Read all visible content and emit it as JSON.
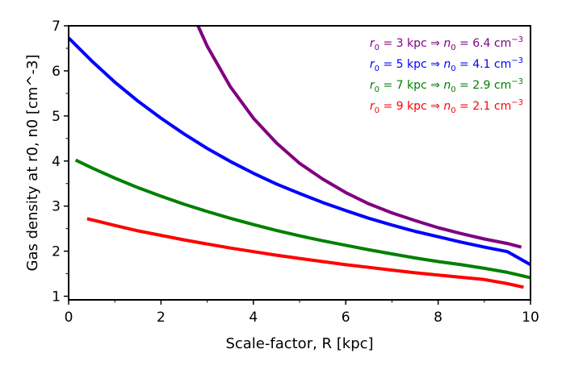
{
  "chart_data": {
    "type": "line",
    "xlabel": "Scale-factor, R [kpc]",
    "ylabel": "Gas density at r0, n0 [cm^-3]",
    "xlim": [
      0,
      10
    ],
    "ylim": [
      0.92,
      7
    ],
    "xticks": [
      0,
      2,
      4,
      6,
      8,
      10
    ],
    "yticks": [
      1,
      2,
      3,
      4,
      5,
      6,
      7
    ],
    "grid": false,
    "legend_position": "top-right",
    "series": [
      {
        "name": "r0 = 3 kpc ⇒ n0 = 6.4 cm^-3",
        "r0": "3",
        "n0": "6.4",
        "color": "#800080",
        "x": [
          2.8,
          3.0,
          3.5,
          4.0,
          4.5,
          5.0,
          5.5,
          6.0,
          6.5,
          7.0,
          7.5,
          8.0,
          8.5,
          9.0,
          9.5,
          9.8
        ],
        "y": [
          7.0,
          6.55,
          5.65,
          4.95,
          4.4,
          3.95,
          3.6,
          3.3,
          3.05,
          2.85,
          2.68,
          2.52,
          2.39,
          2.27,
          2.17,
          2.09
        ]
      },
      {
        "name": "r0 = 5 kpc ⇒ n0 = 4.1 cm^-3",
        "r0": "5",
        "n0": "4.1",
        "color": "#0000ff",
        "x": [
          0,
          0.5,
          1,
          1.5,
          2,
          2.5,
          3,
          3.5,
          4,
          4.5,
          5,
          5.5,
          6,
          6.5,
          7,
          7.5,
          8,
          8.5,
          9,
          9.5,
          10
        ],
        "y": [
          6.73,
          6.22,
          5.75,
          5.33,
          4.95,
          4.6,
          4.28,
          3.99,
          3.73,
          3.49,
          3.28,
          3.08,
          2.9,
          2.73,
          2.58,
          2.44,
          2.32,
          2.2,
          2.09,
          1.99,
          1.7
        ]
      },
      {
        "name": "r0 = 7 kpc ⇒ n0 = 2.9 cm^-3",
        "r0": "7",
        "n0": "2.9",
        "color": "#008000",
        "x": [
          0.15,
          0.5,
          1,
          1.5,
          2,
          2.5,
          3,
          3.5,
          4,
          4.5,
          5,
          5.5,
          6,
          6.5,
          7,
          7.5,
          8,
          8.5,
          9,
          9.5,
          10
        ],
        "y": [
          4.02,
          3.85,
          3.62,
          3.41,
          3.22,
          3.04,
          2.88,
          2.73,
          2.59,
          2.46,
          2.34,
          2.23,
          2.13,
          2.03,
          1.94,
          1.85,
          1.77,
          1.7,
          1.62,
          1.53,
          1.41
        ]
      },
      {
        "name": "r0 = 9 kpc ⇒ n0 = 2.1 cm^-3",
        "r0": "9",
        "n0": "2.1",
        "color": "#ff0000",
        "x": [
          0.4,
          1,
          1.5,
          2,
          2.5,
          3,
          3.5,
          4,
          4.5,
          5,
          5.5,
          6,
          6.5,
          7,
          7.5,
          8,
          8.5,
          9,
          9.5,
          9.85
        ],
        "y": [
          2.72,
          2.57,
          2.45,
          2.35,
          2.25,
          2.16,
          2.07,
          1.99,
          1.91,
          1.84,
          1.77,
          1.7,
          1.64,
          1.58,
          1.52,
          1.47,
          1.42,
          1.37,
          1.28,
          1.2
        ]
      }
    ]
  }
}
